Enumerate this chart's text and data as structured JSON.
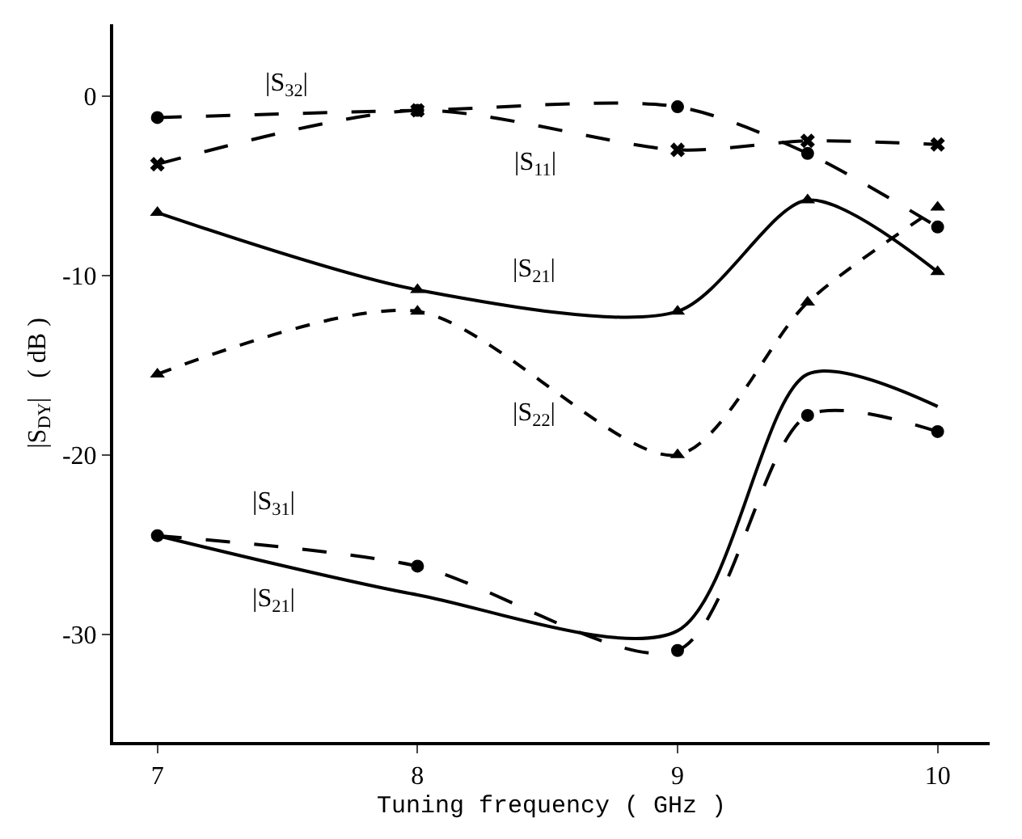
{
  "chart_data": {
    "type": "line",
    "xlabel": "Tuning frequency ( GHz )",
    "ylabel": "|S$_{DY}$|   ( dB )",
    "x": [
      7,
      8,
      9,
      9.5,
      10
    ],
    "series": [
      {
        "name": "|S$_{32}$|",
        "color": "#000000",
        "values": [
          -1.2,
          -0.8,
          -0.6,
          -3.2,
          -7.3
        ],
        "marker": "circle",
        "line_style": "dashed"
      },
      {
        "name": "|S$_{11}$|",
        "color": "#000000",
        "values": [
          -3.8,
          -0.8,
          -3.0,
          -2.5,
          -2.7
        ],
        "marker": "cross",
        "line_style": "dashed"
      },
      {
        "name": "|S$_{21}$|",
        "color": "#000000",
        "values": [
          -6.5,
          -10.8,
          -12.0,
          -5.8,
          -9.8
        ],
        "marker": "triangle",
        "line_style": "solid"
      },
      {
        "name": "|S$_{22}$|",
        "color": "#000000",
        "values": [
          -15.5,
          -12.0,
          -20.0,
          -11.5,
          -6.2
        ],
        "marker": "triangle",
        "line_style": "dotted"
      },
      {
        "name": "|S$_{31}$|",
        "color": "#000000",
        "values": [
          -24.5,
          -26.2,
          -30.9,
          -17.8,
          -18.7
        ],
        "marker": "circle",
        "line_style": "dashed"
      },
      {
        "name": "|S$_{21}$|",
        "color": "#000000",
        "values": [
          -24.5,
          -27.8,
          -29.8,
          -15.5,
          -17.3
        ],
        "marker": "none",
        "line_style": "solid"
      }
    ],
    "xlim": [
      6.83,
      10.2
    ],
    "ylim": [
      -36,
      4
    ],
    "xticks": [
      7,
      8,
      9,
      10
    ],
    "yticks": [
      0,
      -10,
      -20,
      -30
    ],
    "grid": false,
    "legend": false
  }
}
